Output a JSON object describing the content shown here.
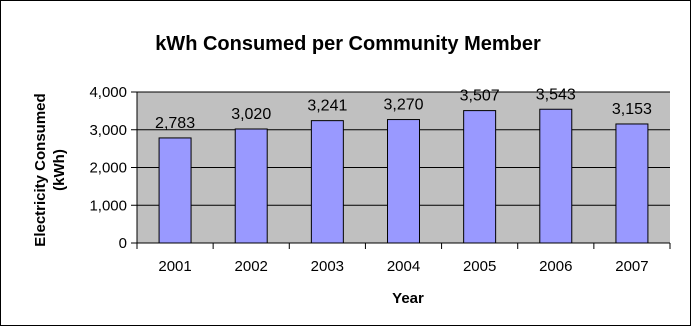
{
  "chart_data": {
    "type": "bar",
    "title": "kWh Consumed per Community Member",
    "xlabel": "Year",
    "ylabel_lines": [
      "Electricity Consumed",
      "(kWh)"
    ],
    "categories": [
      "2001",
      "2002",
      "2003",
      "2004",
      "2005",
      "2006",
      "2007"
    ],
    "values": [
      2783,
      3020,
      3241,
      3270,
      3507,
      3543,
      3153
    ],
    "value_labels": [
      "2,783",
      "3,020",
      "3,241",
      "3,270",
      "3,507",
      "3,543",
      "3,153"
    ],
    "ylim": [
      0,
      4000
    ],
    "yticks": [
      0,
      1000,
      2000,
      3000,
      4000
    ],
    "ytick_labels": [
      "0",
      "1,000",
      "2,000",
      "3,000",
      "4,000"
    ],
    "grid": true,
    "legend": "none",
    "colors": {
      "bar_fill": "#9999ff",
      "bar_stroke": "#000000",
      "plot_background": "#c0c0c0",
      "gridline": "#000000",
      "border": "#000000"
    }
  }
}
